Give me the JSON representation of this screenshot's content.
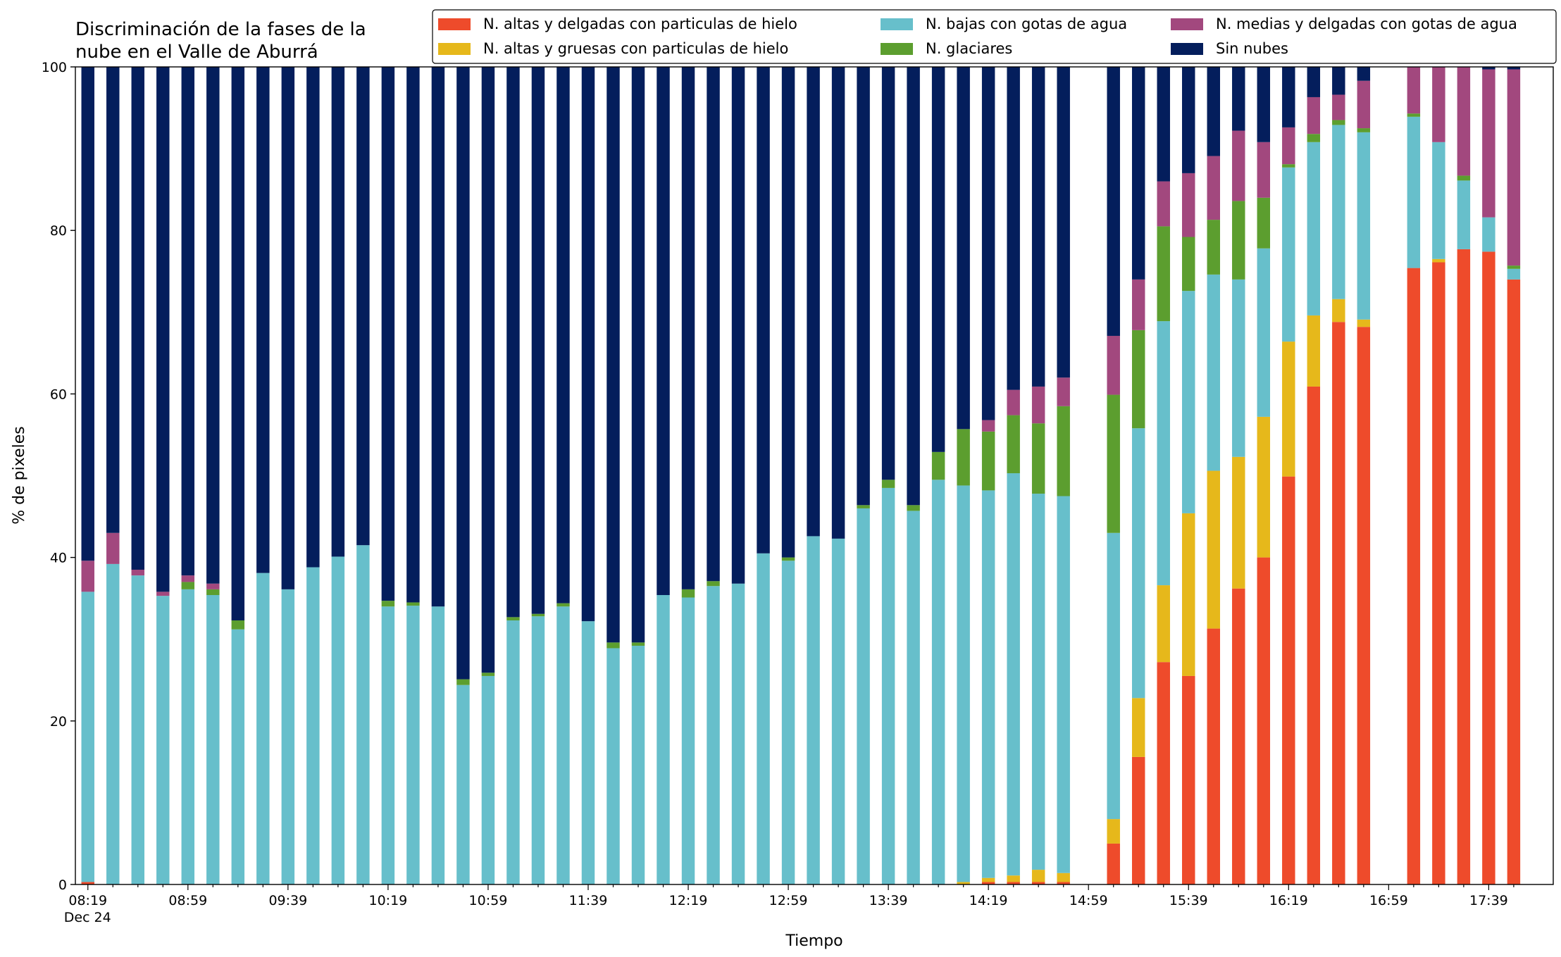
{
  "chart_data": {
    "type": "stacked_bar",
    "title": [
      "Discriminación de la fases de la",
      "nube en el Valle de Aburrá"
    ],
    "xlabel": "Tiempo",
    "ylabel": "% de pixeles",
    "x_sublabel": "Dec 24",
    "categories": [
      "08:19",
      null,
      null,
      null,
      "08:59",
      null,
      null,
      null,
      "09:39",
      null,
      null,
      null,
      "10:19",
      null,
      null,
      null,
      "10:59",
      null,
      null,
      null,
      "11:39",
      null,
      null,
      null,
      "12:19",
      null,
      null,
      null,
      "12:59",
      null,
      null,
      null,
      "13:39",
      null,
      null,
      null,
      "14:19",
      null,
      null,
      null,
      "14:59",
      null,
      null,
      null,
      "15:39",
      null,
      null,
      null,
      "16:19",
      null,
      null,
      null,
      "16:59",
      null,
      null,
      null,
      "17:39",
      null
    ],
    "ylim": [
      0,
      100
    ],
    "yticks": [
      0,
      20,
      40,
      60,
      80,
      100
    ],
    "legend": "top-right",
    "series": [
      {
        "name": "N. altas y delgadas con particulas de hielo",
        "color": "#ee4b2b",
        "values": [
          0.3,
          0,
          0,
          0,
          0,
          0,
          0,
          0,
          0,
          0,
          0,
          0,
          0,
          0,
          0,
          0,
          0,
          0,
          0,
          0,
          0,
          0,
          0,
          0,
          0,
          0,
          0,
          0,
          0,
          0,
          0,
          0,
          0,
          0,
          0,
          0,
          0.3,
          0.3,
          0.3,
          0.3,
          null,
          5.0,
          15.6,
          27.2,
          25.5,
          31.3,
          36.2,
          40.0,
          49.9,
          60.9,
          68.8,
          68.2,
          null,
          75.4,
          76.1,
          77.7,
          77.4,
          74.0
        ]
      },
      {
        "name": "N. altas y gruesas con particulas de hielo",
        "color": "#e6b81b",
        "values": [
          0,
          0,
          0,
          0,
          0,
          0,
          0,
          0,
          0,
          0,
          0,
          0,
          0,
          0,
          0,
          0,
          0,
          0,
          0,
          0,
          0,
          0,
          0,
          0,
          0,
          0,
          0,
          0,
          0,
          0,
          0,
          0,
          0,
          0,
          0,
          0.3,
          0.5,
          0.8,
          1.5,
          1.1,
          null,
          3.0,
          7.2,
          9.4,
          19.9,
          19.3,
          16.1,
          17.2,
          16.5,
          8.7,
          2.8,
          0.9,
          null,
          0,
          0.4,
          0,
          0,
          0
        ]
      },
      {
        "name": "N. bajas con gotas de agua",
        "color": "#67bfcb",
        "values": [
          35.5,
          39.2,
          37.8,
          35.3,
          36.1,
          35.4,
          31.2,
          38.1,
          36.1,
          38.8,
          40.1,
          41.5,
          34.0,
          34.1,
          34.0,
          24.4,
          25.5,
          32.3,
          32.8,
          34.0,
          32.2,
          28.9,
          29.2,
          35.4,
          35.1,
          36.5,
          36.8,
          40.5,
          39.6,
          42.6,
          42.3,
          46.0,
          48.5,
          45.7,
          49.5,
          48.5,
          47.4,
          49.2,
          46.0,
          46.1,
          null,
          35.0,
          33.0,
          32.3,
          27.2,
          24.0,
          21.7,
          20.6,
          21.3,
          21.2,
          21.3,
          22.9,
          null,
          18.5,
          14.3,
          8.4,
          4.2,
          1.3
        ]
      },
      {
        "name": "N. glaciares",
        "color": "#5c9e2f",
        "values": [
          0,
          0,
          0,
          0,
          0.9,
          0.7,
          1.1,
          0,
          0,
          0,
          0,
          0,
          0.7,
          0.4,
          0,
          0.7,
          0.4,
          0.4,
          0.3,
          0.4,
          0,
          0.7,
          0.4,
          0,
          1.0,
          0.6,
          0,
          0,
          0.4,
          0,
          0,
          0.4,
          1.0,
          0.7,
          3.4,
          6.9,
          7.2,
          7.1,
          8.6,
          11.0,
          null,
          16.9,
          12.0,
          11.6,
          6.6,
          6.7,
          9.6,
          6.2,
          0.4,
          1.0,
          0.6,
          0.5,
          null,
          0.4,
          0,
          0.6,
          0,
          0.4
        ]
      },
      {
        "name": "N. medias y delgadas con gotas de agua",
        "color": "#a2487e",
        "values": [
          3.8,
          3.8,
          0.7,
          0.5,
          0.8,
          0.7,
          0,
          0,
          0,
          0,
          0,
          0,
          0,
          0,
          0,
          0,
          0,
          0,
          0,
          0,
          0,
          0,
          0,
          0,
          0,
          0,
          0,
          0,
          0,
          0,
          0,
          0,
          0,
          0,
          0,
          0,
          1.4,
          3.1,
          4.5,
          3.5,
          null,
          7.2,
          6.2,
          5.5,
          7.8,
          7.8,
          8.6,
          6.8,
          4.5,
          4.5,
          3.1,
          5.8,
          null,
          5.7,
          9.2,
          13.3,
          18.1,
          24.0
        ]
      },
      {
        "name": "Sin nubes",
        "color": "#041e5c",
        "values": [
          60.4,
          57.0,
          61.5,
          64.2,
          62.2,
          63.2,
          67.7,
          61.9,
          63.9,
          61.2,
          59.9,
          58.5,
          65.3,
          65.5,
          66.0,
          74.9,
          74.1,
          67.3,
          66.9,
          65.6,
          67.8,
          70.4,
          70.4,
          64.6,
          63.9,
          62.9,
          63.2,
          59.5,
          60.0,
          57.4,
          57.7,
          53.6,
          50.5,
          53.6,
          47.1,
          44.3,
          43.2,
          39.5,
          39.1,
          38.0,
          null,
          32.9,
          26.0,
          14.0,
          13.0,
          10.9,
          7.8,
          9.2,
          7.4,
          3.7,
          3.4,
          1.7,
          null,
          0,
          0,
          0,
          0.3,
          0.3
        ]
      }
    ]
  }
}
